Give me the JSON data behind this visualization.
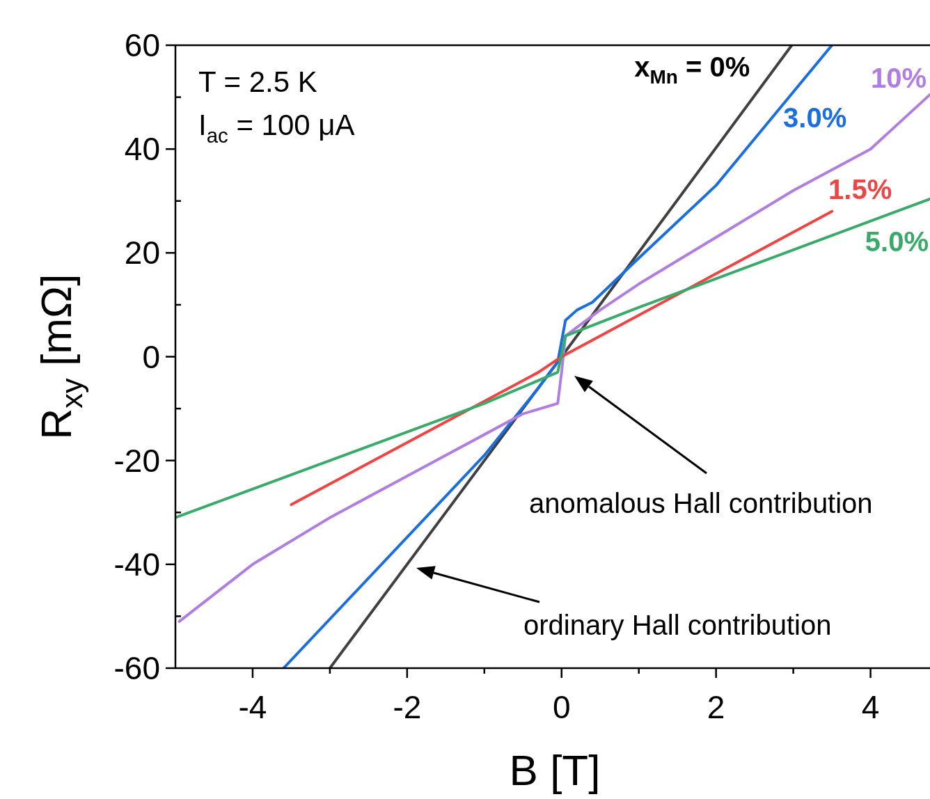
{
  "chart_data": {
    "type": "line",
    "xlabel": "B [T]",
    "ylabel": "R$_{xy}$  [mΩ]",
    "xlim": [
      -5,
      4.77
    ],
    "ylim": [
      -60,
      60
    ],
    "xticks": [
      -4,
      {
        "value": -3,
        "label": null
      },
      -2,
      {
        "value": -1,
        "label": null
      },
      0,
      {
        "value": 1,
        "label": null
      },
      2,
      {
        "value": 3,
        "label": null
      },
      4
    ],
    "yticks": [
      -60,
      {
        "value": -50,
        "label": null
      },
      -40,
      {
        "value": -30,
        "label": null
      },
      -20,
      {
        "value": -10,
        "label": null
      },
      0,
      {
        "value": 10,
        "label": null
      },
      20,
      {
        "value": 30,
        "label": null
      },
      40,
      {
        "value": 50,
        "label": null
      },
      60
    ],
    "grid": false,
    "line_style": "solid",
    "marker": "none",
    "series": [
      {
        "name": "x$_{Mn}$ = 0%",
        "color": "#404040",
        "x": [
          -3.0,
          0,
          2.98
        ],
        "values": [
          -60,
          0,
          60
        ]
      },
      {
        "name": "3.0%",
        "color": "#1a6ee0",
        "x": [
          -3.6,
          -1,
          -0.3,
          -0.05,
          0,
          0.05,
          0.2,
          0.4,
          1,
          2,
          3.5
        ],
        "values": [
          -60,
          -19,
          -6,
          -1,
          3,
          7,
          9,
          10.5,
          19,
          33,
          60
        ]
      },
      {
        "name": "10%",
        "color": "#b07ee0",
        "x": [
          -4.95,
          -4,
          -3,
          -2,
          -1,
          -0.5,
          -0.05,
          0,
          0.05,
          0.5,
          1,
          2,
          3,
          4,
          4.77
        ],
        "values": [
          -51,
          -40,
          -31,
          -23,
          -15,
          -11,
          -9,
          -3,
          4,
          9,
          14,
          23,
          32,
          40,
          50.5
        ]
      },
      {
        "name": "1.5%",
        "color": "#ee4444",
        "x": [
          -3.5,
          -0.3,
          0,
          3.5
        ],
        "values": [
          -28.5,
          -3,
          0,
          28
        ]
      },
      {
        "name": "5.0%",
        "color": "#3aaa6a",
        "x": [
          -5,
          -1,
          -0.05,
          0.05,
          1,
          4.77
        ],
        "values": [
          -31,
          -9,
          -3,
          4,
          9.5,
          30.4
        ]
      }
    ],
    "annotations": [
      "T = 2.5 K",
      "I$_{ac}$ = 100 μA",
      "anomalous Hall contribution",
      "ordinary Hall contribution"
    ]
  }
}
